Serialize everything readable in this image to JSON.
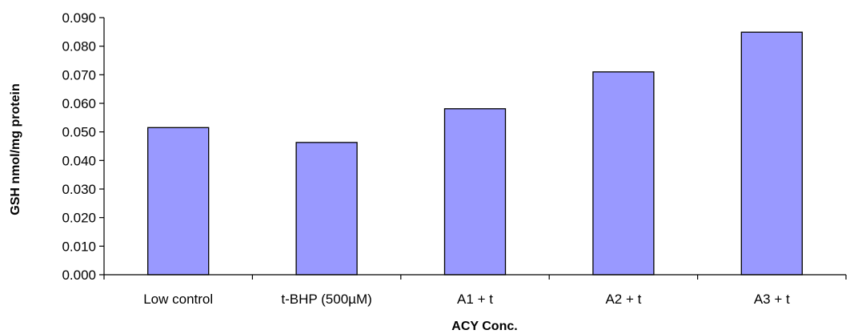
{
  "chart_data": {
    "type": "bar",
    "title": "",
    "xlabel": "ACY Conc.",
    "ylabel": "GSH nmol/mg protein",
    "categories": [
      "Low control",
      "t-BHP (500µM)",
      "A1 + t",
      "A2 + t",
      "A3 + t"
    ],
    "values": [
      0.0515,
      0.0463,
      0.0581,
      0.071,
      0.0849
    ],
    "ylim": [
      0,
      0.09
    ],
    "yticks": [
      "0.000",
      "0.010",
      "0.020",
      "0.030",
      "0.040",
      "0.050",
      "0.060",
      "0.070",
      "0.080",
      "0.090"
    ],
    "grid": false,
    "legend": "none",
    "colors": {
      "bar_fill": "#9999ff",
      "bar_stroke": "#000000"
    }
  }
}
